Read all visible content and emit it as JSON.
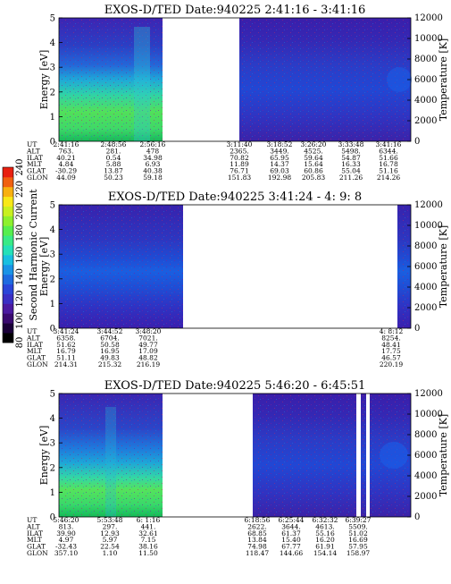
{
  "colors": {
    "colorbar": [
      "#000000",
      "#1a0038",
      "#3a0a70",
      "#4b1aa0",
      "#3a2fc4",
      "#2a45d8",
      "#1e6ae0",
      "#1a93e6",
      "#19bfe0",
      "#25e0b8",
      "#39ea86",
      "#56ee4e",
      "#8df02e",
      "#c8f020",
      "#f8e818",
      "#f8b010",
      "#f06010",
      "#e82010"
    ],
    "background": "#ffffff"
  },
  "colorbar": {
    "label": "Second Harmonic Current",
    "ticks": [
      "80",
      "100",
      "120",
      "140",
      "160",
      "180",
      "200",
      "220",
      "240"
    ]
  },
  "chart_data": [
    {
      "type": "heatmap",
      "title": "EXOS-D/TED   Date:940225  2:41:16 - 3:41:16",
      "ylabel": "Energy [eV]",
      "y2label": "Temperature [K]",
      "ylim": [
        0,
        5
      ],
      "y2lim": [
        0,
        12000
      ],
      "yticks": [
        "0",
        "1",
        "2",
        "3",
        "4",
        "5"
      ],
      "y2ticks": [
        "0",
        "2000",
        "4000",
        "6000",
        "8000",
        "10000",
        "12000"
      ],
      "data_segments": [
        [
          "2:41:16",
          "2:56:16"
        ],
        [
          "3:11:40",
          "3:41:16"
        ]
      ],
      "ephemeris": {
        "rows": [
          "UT",
          "ALT",
          "ILAT",
          "MLT",
          "GLAT",
          "GLON"
        ],
        "columns": [
          {
            "values": [
              "2:41:16",
              "763.",
              "40.21",
              "4.84",
              "-30.29",
              "44.09"
            ]
          },
          {
            "values": [
              "2:48:56",
              "281.",
              "0.54",
              "5.88",
              "13.87",
              "50.23"
            ]
          },
          {
            "values": [
              "2:56:16",
              "478",
              "34.98",
              "6.93",
              "40.38",
              "59.18"
            ]
          },
          {
            "values": [
              "3:11:40",
              "2365.",
              "70.82",
              "11.89",
              "76.71",
              "151.83"
            ]
          },
          {
            "values": [
              "3:18:52",
              "3449.",
              "65.95",
              "14.37",
              "69.03",
              "192.98"
            ]
          },
          {
            "values": [
              "3:26:20",
              "4525.",
              "59.64",
              "15.64",
              "60.86",
              "205.83"
            ]
          },
          {
            "values": [
              "3:33:48",
              "5498.",
              "54.87",
              "16.33",
              "55.04",
              "211.26"
            ]
          },
          {
            "values": [
              "3:41:16",
              "6344.",
              "51.66",
              "16.78",
              "51.16",
              "214.26"
            ]
          }
        ]
      }
    },
    {
      "type": "heatmap",
      "title": "EXOS-D/TED   Date:940225  3:41:24 - 4: 9: 8",
      "ylabel": "Energy [eV]",
      "y2label": "Temperature [K]",
      "ylim": [
        0,
        5
      ],
      "y2lim": [
        0,
        12000
      ],
      "yticks": [
        "0",
        "1",
        "2",
        "3",
        "4",
        "5"
      ],
      "y2ticks": [
        "0",
        "2000",
        "4000",
        "6000",
        "8000",
        "10000",
        "12000"
      ],
      "data_segments": [
        [
          "3:41:24",
          "3:48:20"
        ],
        [
          "4: 8:12",
          "4: 8:12"
        ]
      ],
      "ephemeris": {
        "rows": [
          "UT",
          "ALT",
          "ILAT",
          "MLT",
          "GLAT",
          "GLON"
        ],
        "columns": [
          {
            "values": [
              "3:41:24",
              "6358.",
              "51.62",
              "16.79",
              "51.11",
              "214.31"
            ]
          },
          {
            "values": [
              "3:44:52",
              "6704.",
              "50.58",
              "16.95",
              "49.83",
              "215.32"
            ]
          },
          {
            "values": [
              "3:48:20",
              "7021.",
              "49.77",
              "17.09",
              "48.82",
              "216.19"
            ]
          },
          {
            "values": [
              "4: 8:12",
              "8254.",
              "48.41",
              "17.75",
              "46.57",
              "220.19"
            ]
          }
        ]
      }
    },
    {
      "type": "heatmap",
      "title": "EXOS-D/TED   Date:940225  5:46:20 - 6:45:51",
      "ylabel": "Energy [eV]",
      "y2label": "Temperature [K]",
      "ylim": [
        0,
        5
      ],
      "y2lim": [
        0,
        12000
      ],
      "yticks": [
        "0",
        "1",
        "2",
        "3",
        "4",
        "5"
      ],
      "y2ticks": [
        "0",
        "2000",
        "4000",
        "6000",
        "8000",
        "10000",
        "12000"
      ],
      "data_segments": [
        [
          "5:46:20",
          "6:1:16"
        ],
        [
          "6:18:56",
          "6:39:27"
        ]
      ],
      "ephemeris": {
        "rows": [
          "UT",
          "ALT",
          "ILAT",
          "MLT",
          "GLAT",
          "GLON"
        ],
        "columns": [
          {
            "values": [
              "5:46:20",
              "813.",
              "39.90",
              "4.97",
              "-32.43",
              "357.10"
            ]
          },
          {
            "values": [
              "5:53:48",
              "297.",
              "12.93",
              "5.97",
              "22.54",
              "1.10"
            ]
          },
          {
            "values": [
              "6: 1:16",
              "441.",
              "32.61",
              "7.15",
              "38.16",
              "11.50"
            ]
          },
          {
            "values": [
              "6:18:56",
              "2622.",
              "68.85",
              "13.84",
              "74.98",
              "118.47"
            ]
          },
          {
            "values": [
              "6:25:44",
              "3644.",
              "61.37",
              "15.40",
              "67.77",
              "144.66"
            ]
          },
          {
            "values": [
              "6:32:32",
              "4613.",
              "55.16",
              "16.20",
              "61.91",
              "154.14"
            ]
          },
          {
            "values": [
              "6:39:27",
              "5509.",
              "51.02",
              "16.69",
              "57.95",
              "158.97"
            ]
          }
        ]
      }
    }
  ]
}
